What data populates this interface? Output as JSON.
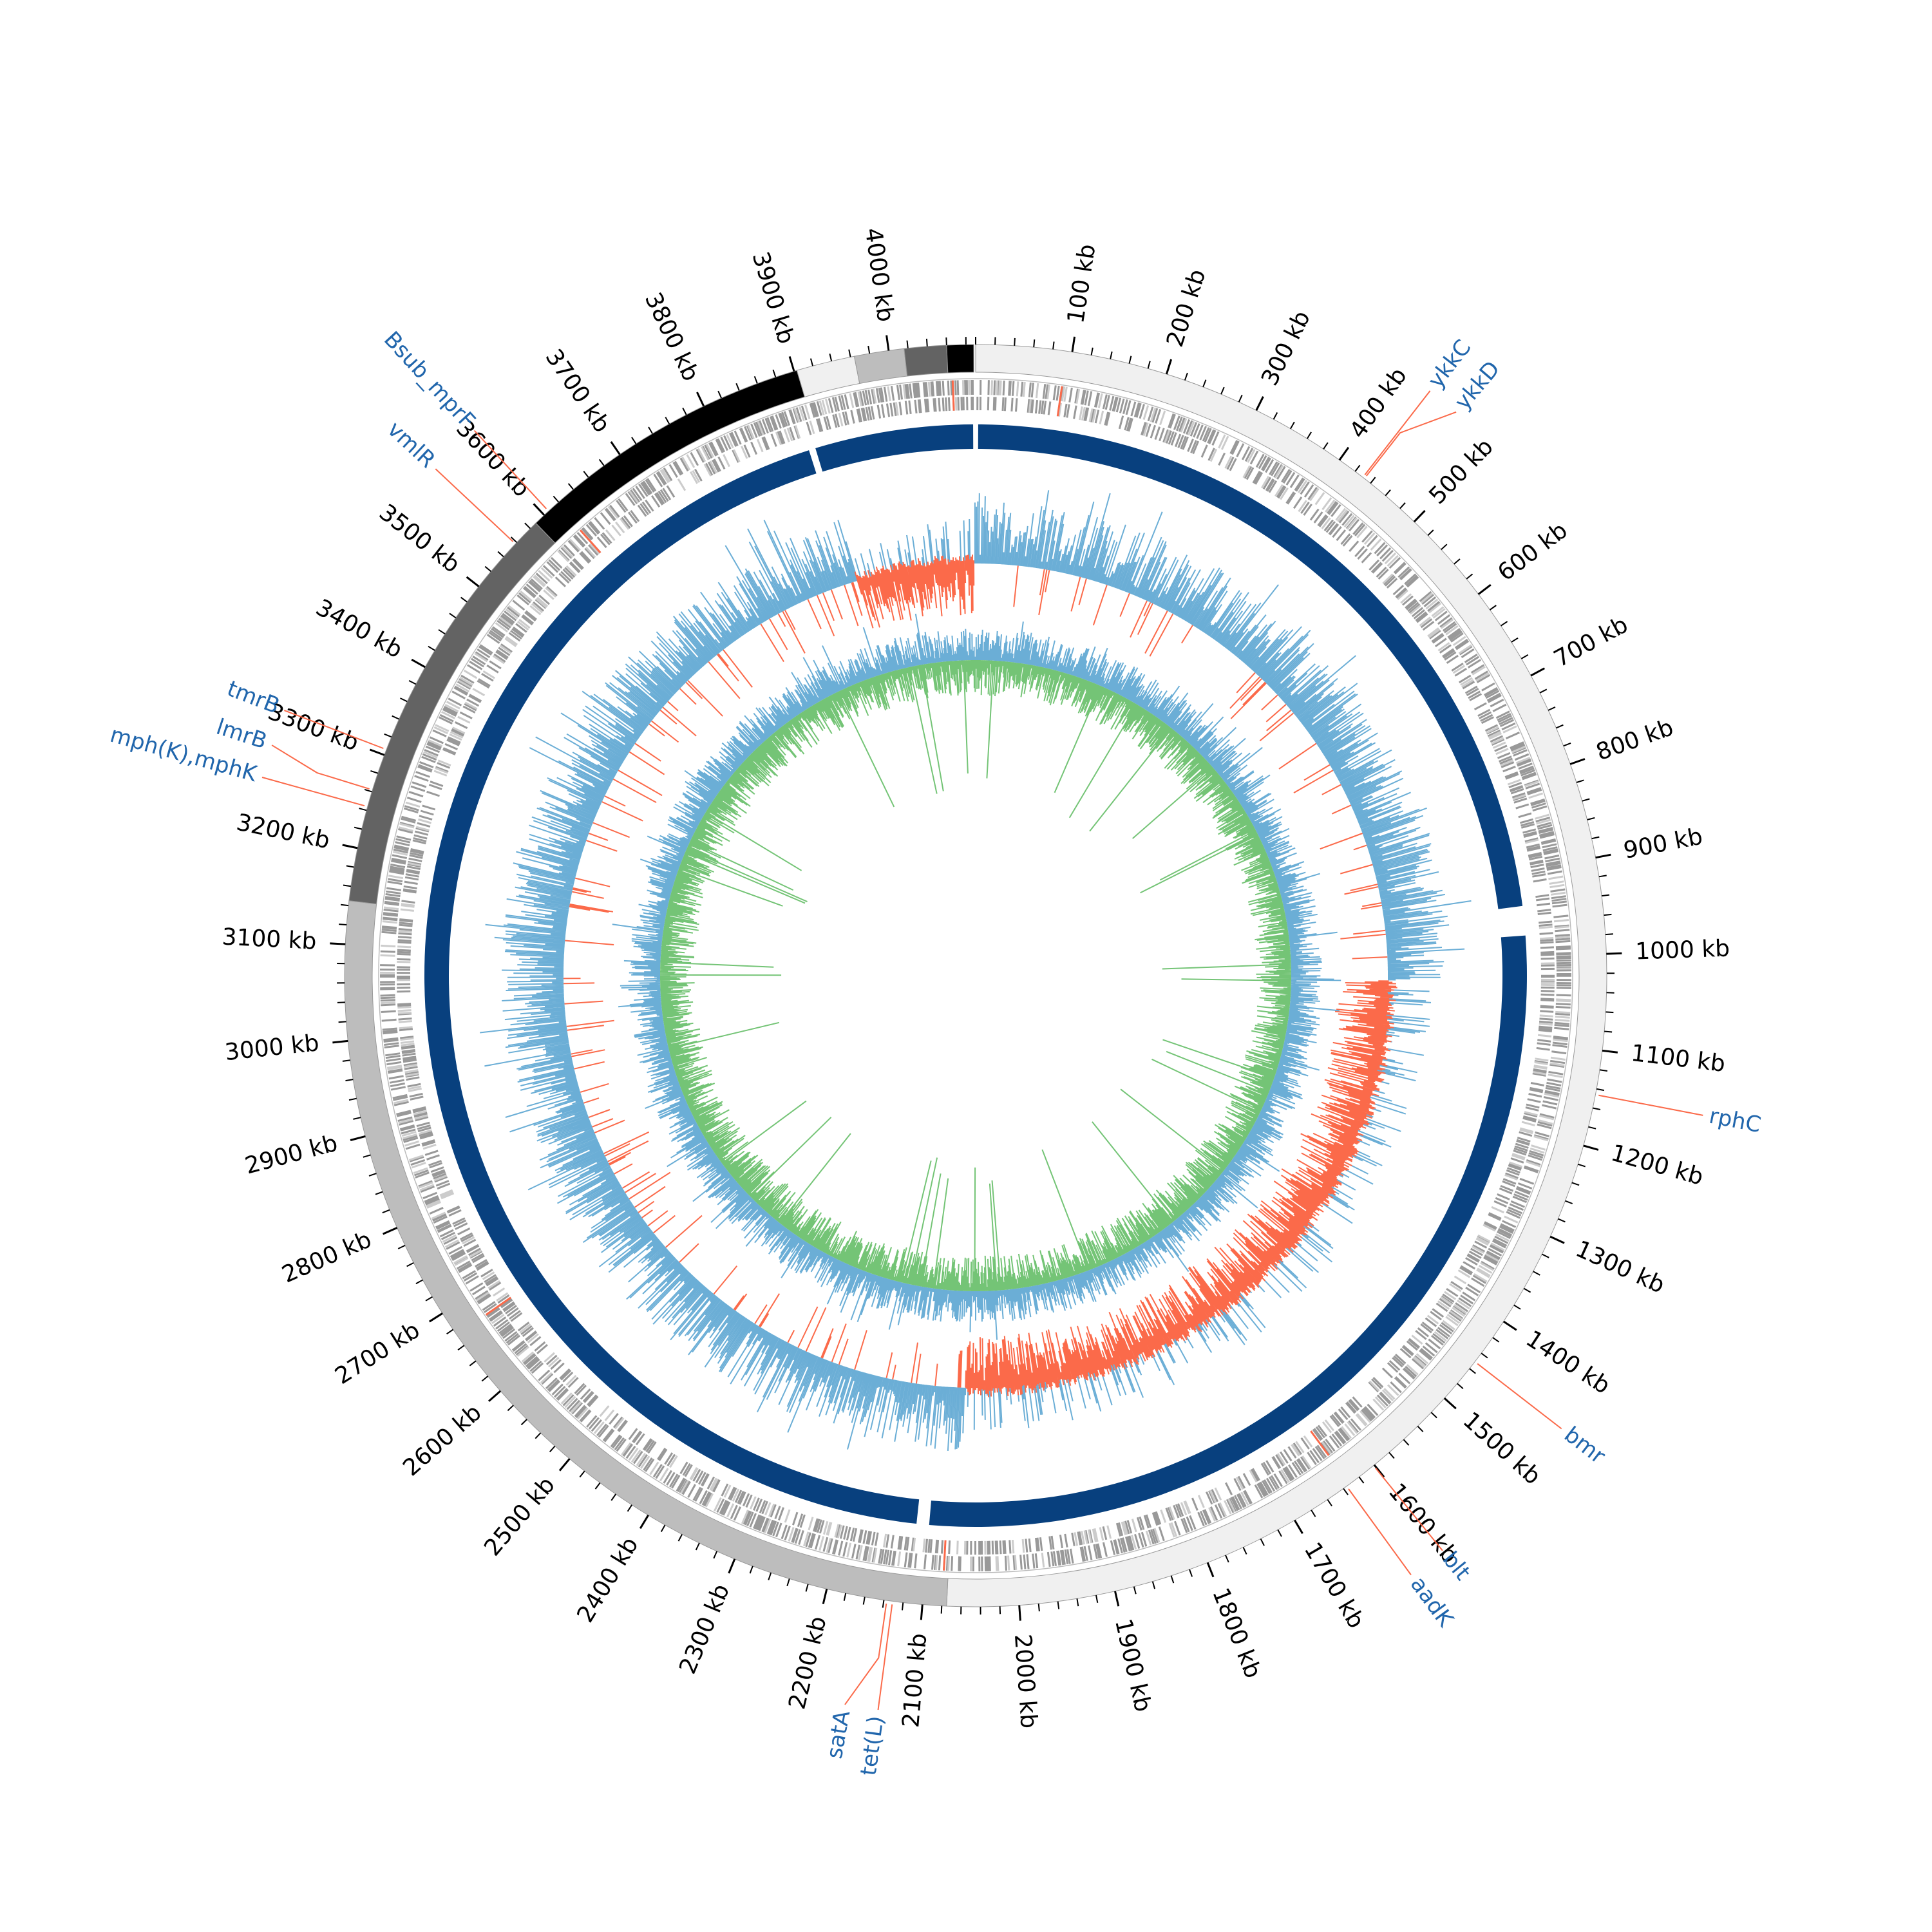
{
  "range": [
    0,
    4090
  ],
  "minor_tick_step": 20,
  "ticks": [
    {
      "value": 100,
      "label": "100 kb"
    },
    {
      "value": 200,
      "label": "200 kb"
    },
    {
      "value": 300,
      "label": "300 kb"
    },
    {
      "value": 400,
      "label": "400 kb"
    },
    {
      "value": 500,
      "label": "500 kb"
    },
    {
      "value": 600,
      "label": "600 kb"
    },
    {
      "value": 700,
      "label": "700 kb"
    },
    {
      "value": 800,
      "label": "800 kb"
    },
    {
      "value": 900,
      "label": "900 kb"
    },
    {
      "value": 1000,
      "label": "1000 kb"
    },
    {
      "value": 1100,
      "label": "1100 kb"
    },
    {
      "value": 1200,
      "label": "1200 kb"
    },
    {
      "value": 1300,
      "label": "1300 kb"
    },
    {
      "value": 1400,
      "label": "1400 kb"
    },
    {
      "value": 1500,
      "label": "1500 kb"
    },
    {
      "value": 1600,
      "label": "1600 kb"
    },
    {
      "value": 1700,
      "label": "1700 kb"
    },
    {
      "value": 1800,
      "label": "1800 kb"
    },
    {
      "value": 1900,
      "label": "1900 kb"
    },
    {
      "value": 2000,
      "label": "2000 kb"
    },
    {
      "value": 2100,
      "label": "2100 kb"
    },
    {
      "value": 2200,
      "label": "2200 kb"
    },
    {
      "value": 2300,
      "label": "2300 kb"
    },
    {
      "value": 2400,
      "label": "2400 kb"
    },
    {
      "value": 2500,
      "label": "2500 kb"
    },
    {
      "value": 2600,
      "label": "2600 kb"
    },
    {
      "value": 2700,
      "label": "2700 kb"
    },
    {
      "value": 2800,
      "label": "2800 kb"
    },
    {
      "value": 2900,
      "label": "2900 kb"
    },
    {
      "value": 3000,
      "label": "3000 kb"
    },
    {
      "value": 3100,
      "label": "3100 kb"
    },
    {
      "value": 3200,
      "label": "3200 kb"
    },
    {
      "value": 3300,
      "label": "3300 kb"
    },
    {
      "value": 3400,
      "label": "3400 kb"
    },
    {
      "value": 3500,
      "label": "3500 kb"
    },
    {
      "value": 3600,
      "label": "3600 kb"
    },
    {
      "value": 3700,
      "label": "3700 kb"
    },
    {
      "value": 3800,
      "label": "3800 kb"
    },
    {
      "value": 3900,
      "label": "3900 kb"
    },
    {
      "value": 4000,
      "label": "4000 kb"
    }
  ],
  "contigs": [
    {
      "start": 0,
      "end": 2075,
      "color": "#f0f0f0"
    },
    {
      "start": 2075,
      "end": 3145,
      "color": "#bdbdbd"
    },
    {
      "start": 3145,
      "end": 3588,
      "color": "#636363"
    },
    {
      "start": 3588,
      "end": 3903,
      "color": "#000000"
    },
    {
      "start": 3903,
      "end": 3964,
      "color": "#f0f0f0"
    },
    {
      "start": 3964,
      "end": 4016,
      "color": "#bdbdbd"
    },
    {
      "start": 4016,
      "end": 4060,
      "color": "#636363"
    },
    {
      "start": 4060,
      "end": 4088,
      "color": "#000000"
    }
  ],
  "ring_segments": [
    [
      3,
      940
    ],
    [
      975,
      2100
    ],
    [
      2115,
      3890
    ],
    [
      3898,
      4087
    ]
  ],
  "negative_skew_regions": [
    [
      3900,
      4088
    ],
    [
      1030,
      2060
    ]
  ],
  "genes": [
    {
      "label": "ykkC",
      "position": 430
    },
    {
      "label": "ykkD",
      "position": 432
    },
    {
      "label": "rphC",
      "position": 1146
    },
    {
      "label": "bmr",
      "position": 1451
    },
    {
      "label": "blt",
      "position": 1601
    },
    {
      "label": "aadK",
      "position": 1636
    },
    {
      "label": "tet(L)",
      "position": 2131
    },
    {
      "label": "satA",
      "position": 2137
    },
    {
      "label": "mph(K),mphK",
      "position": 3244
    },
    {
      "label": "lmrB",
      "position": 3262
    },
    {
      "label": "tmrB",
      "position": 3306
    },
    {
      "label": "vmlR",
      "position": 3558
    },
    {
      "label": "Bsub_mprF",
      "position": 3606
    }
  ]
}
